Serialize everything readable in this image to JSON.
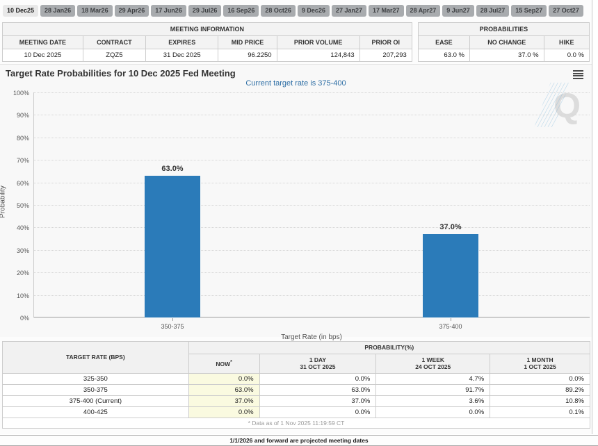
{
  "tabs": {
    "items": [
      {
        "label": "10 Dec25",
        "selected": true
      },
      {
        "label": "28 Jan26",
        "selected": false
      },
      {
        "label": "18 Mar26",
        "selected": false
      },
      {
        "label": "29 Apr26",
        "selected": false
      },
      {
        "label": "17 Jun26",
        "selected": false
      },
      {
        "label": "29 Jul26",
        "selected": false
      },
      {
        "label": "16 Sep26",
        "selected": false
      },
      {
        "label": "28 Oct26",
        "selected": false
      },
      {
        "label": "9 Dec26",
        "selected": false
      },
      {
        "label": "27 Jan27",
        "selected": false
      },
      {
        "label": "17 Mar27",
        "selected": false
      },
      {
        "label": "28 Apr27",
        "selected": false
      },
      {
        "label": "9 Jun27",
        "selected": false
      },
      {
        "label": "28 Jul27",
        "selected": false
      },
      {
        "label": "15 Sep27",
        "selected": false
      },
      {
        "label": "27 Oct27",
        "selected": false
      }
    ]
  },
  "meeting_info": {
    "caption": "MEETING INFORMATION",
    "columns": [
      "MEETING DATE",
      "CONTRACT",
      "EXPIRES",
      "MID PRICE",
      "PRIOR VOLUME",
      "PRIOR OI"
    ],
    "values": [
      "10 Dec 2025",
      "ZQZ5",
      "31 Dec 2025",
      "96.2250",
      "124,843",
      "207,293"
    ]
  },
  "probabilities_summary": {
    "caption": "PROBABILITIES",
    "columns": [
      "EASE",
      "NO CHANGE",
      "HIKE"
    ],
    "values": [
      "63.0 %",
      "37.0 %",
      "0.0 %"
    ]
  },
  "chart_data": {
    "type": "bar",
    "title": "Target Rate Probabilities for 10 Dec 2025 Fed Meeting",
    "subtitle": "Current target rate is 375-400",
    "categories": [
      "350-375",
      "375-400"
    ],
    "values": [
      63.0,
      37.0
    ],
    "value_labels": [
      "63.0%",
      "37.0%"
    ],
    "xlabel": "Target Rate (in bps)",
    "ylabel": "Probability",
    "ylim": [
      0,
      100
    ],
    "ytick_step": 10,
    "ytick_suffix": "%",
    "grid": "dotted",
    "legend": "none",
    "bar_color": "#2b7bb9"
  },
  "probability_table": {
    "header_col": "TARGET RATE (BPS)",
    "header_group": "PROBABILITY(%)",
    "columns": [
      {
        "label": "NOW",
        "sup": "*",
        "sub": ""
      },
      {
        "label": "1 DAY",
        "sup": "",
        "sub": "31 OCT 2025"
      },
      {
        "label": "1 WEEK",
        "sup": "",
        "sub": "24 OCT 2025"
      },
      {
        "label": "1 MONTH",
        "sup": "",
        "sub": "1 OCT 2025"
      }
    ],
    "rows": [
      {
        "rate": "325-350",
        "values": [
          "0.0%",
          "0.0%",
          "4.7%",
          "0.0%"
        ]
      },
      {
        "rate": "350-375",
        "values": [
          "63.0%",
          "63.0%",
          "91.7%",
          "89.2%"
        ]
      },
      {
        "rate": "375-400 (Current)",
        "values": [
          "37.0%",
          "37.0%",
          "3.6%",
          "10.8%"
        ]
      },
      {
        "rate": "400-425",
        "values": [
          "0.0%",
          "0.0%",
          "0.0%",
          "0.1%"
        ]
      }
    ],
    "footnote": "* Data as of 1 Nov 2025 11:19:59 CT"
  },
  "footer": {
    "note": "1/1/2026 and forward are projected meeting dates"
  },
  "colors": {
    "accent": "#2b7bb9",
    "subtitle": "#2d6ea5",
    "now_highlight": "#fafae0",
    "tab_selected_bg": "#e8e8e8",
    "tab_bg": "#a8abae"
  }
}
